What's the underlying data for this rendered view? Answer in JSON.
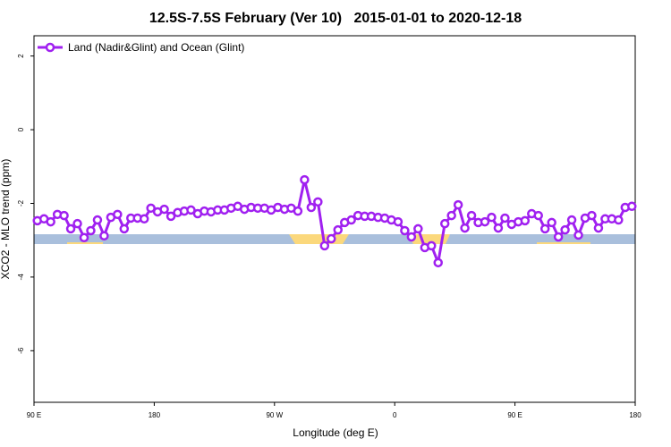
{
  "chart_data": {
    "type": "line",
    "title": "12.5S-7.5S February (Ver 10)   2015-01-01 to 2020-12-18",
    "xlabel": "Longitude (deg E)",
    "ylabel": "XCO2 - MLO trend (ppm)",
    "x": [
      92.5,
      97.5,
      102.5,
      107.5,
      112.5,
      117.5,
      122.5,
      127.5,
      132.5,
      137.5,
      142.5,
      147.5,
      152.5,
      157.5,
      162.5,
      167.5,
      172.5,
      177.5,
      182.5,
      187.5,
      192.5,
      197.5,
      202.5,
      207.5,
      212.5,
      217.5,
      222.5,
      227.5,
      232.5,
      237.5,
      242.5,
      247.5,
      252.5,
      257.5,
      262.5,
      267.5,
      272.5,
      277.5,
      282.5,
      287.5,
      292.5,
      297.5,
      302.5,
      307.5,
      312.5,
      317.5,
      322.5,
      327.5,
      332.5,
      337.5,
      342.5,
      347.5,
      352.5,
      357.5,
      362.5,
      367.5,
      372.5,
      377.5,
      382.5,
      387.5,
      392.5,
      397.5,
      402.5,
      407.5,
      412.5,
      417.5,
      422.5,
      427.5,
      432.5,
      437.5,
      442.5,
      447.5,
      452.5,
      457.5,
      462.5,
      467.5,
      472.5,
      477.5,
      482.5,
      487.5,
      492.5,
      497.5,
      502.5,
      507.5,
      512.5,
      517.5,
      522.5,
      527.5,
      532.5,
      537.5
    ],
    "series": [
      {
        "name": "Land (Nadir&Glint) and Ocean (Glint)",
        "color": "#a020f0",
        "values": [
          -2.47,
          -2.42,
          -2.5,
          -2.3,
          -2.33,
          -2.69,
          -2.55,
          -2.93,
          -2.74,
          -2.45,
          -2.88,
          -2.38,
          -2.3,
          -2.69,
          -2.4,
          -2.4,
          -2.42,
          -2.13,
          -2.23,
          -2.16,
          -2.35,
          -2.25,
          -2.21,
          -2.18,
          -2.28,
          -2.21,
          -2.23,
          -2.18,
          -2.18,
          -2.13,
          -2.08,
          -2.16,
          -2.11,
          -2.13,
          -2.13,
          -2.18,
          -2.11,
          -2.16,
          -2.13,
          -2.21,
          -1.36,
          -2.11,
          -1.96,
          -3.15,
          -2.96,
          -2.72,
          -2.52,
          -2.45,
          -2.33,
          -2.35,
          -2.35,
          -2.38,
          -2.4,
          -2.45,
          -2.5,
          -2.74,
          -2.91,
          -2.69,
          -3.2,
          -3.15,
          -3.61,
          -2.55,
          -2.33,
          -2.04,
          -2.67,
          -2.33,
          -2.52,
          -2.5,
          -2.38,
          -2.67,
          -2.4,
          -2.57,
          -2.5,
          -2.47,
          -2.28,
          -2.33,
          -2.69,
          -2.52,
          -2.91,
          -2.72,
          -2.45,
          -2.86,
          -2.4,
          -2.33,
          -2.67,
          -2.42,
          -2.42,
          -2.45,
          -2.11,
          -2.08
        ]
      }
    ],
    "xlim": [
      90,
      540
    ],
    "xticks": [
      {
        "value": 90,
        "label": "90 E"
      },
      180,
      {
        "value": 270,
        "label": "90 W"
      },
      {
        "value": 360,
        "label": "0"
      },
      {
        "value": 450,
        "label": "90 E"
      },
      {
        "value": 540,
        "label": "180"
      }
    ],
    "ylim": [
      -7.4,
      2.55
    ],
    "yticks": [
      -6,
      -4,
      -2,
      0,
      2
    ],
    "legend": "upper left"
  }
}
